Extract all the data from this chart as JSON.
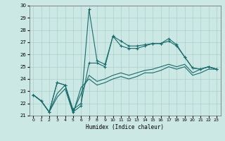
{
  "title": "",
  "xlabel": "Humidex (Indice chaleur)",
  "xlim": [
    -0.5,
    23.5
  ],
  "ylim": [
    21,
    30
  ],
  "yticks": [
    21,
    22,
    23,
    24,
    25,
    26,
    27,
    28,
    29,
    30
  ],
  "xticks": [
    0,
    1,
    2,
    3,
    4,
    5,
    6,
    7,
    8,
    9,
    10,
    11,
    12,
    13,
    14,
    15,
    16,
    17,
    18,
    19,
    20,
    21,
    22,
    23
  ],
  "bg_color": "#cce8e5",
  "grid_color": "#aad0cc",
  "line_color": "#1a6b6b",
  "line1_x": [
    0,
    1,
    2,
    3,
    4,
    5,
    6,
    7,
    8,
    9,
    10,
    11,
    12,
    13,
    14,
    15,
    16,
    17,
    18,
    19,
    20,
    21,
    22,
    23
  ],
  "line1_y": [
    22.7,
    22.2,
    21.3,
    23.7,
    23.5,
    21.3,
    21.8,
    29.7,
    25.5,
    25.2,
    27.5,
    27.1,
    26.7,
    26.7,
    26.8,
    26.9,
    26.9,
    27.3,
    26.8,
    25.8,
    24.9,
    24.8,
    25.0,
    24.8
  ],
  "line2_x": [
    0,
    1,
    2,
    3,
    4,
    5,
    6,
    7,
    8,
    9,
    10,
    11,
    12,
    13,
    14,
    15,
    16,
    17,
    18,
    19,
    20,
    21,
    22,
    23
  ],
  "line2_y": [
    22.7,
    22.2,
    21.3,
    23.7,
    23.5,
    21.5,
    22.0,
    25.3,
    25.3,
    25.0,
    27.5,
    26.7,
    26.5,
    26.5,
    26.7,
    26.9,
    26.9,
    27.1,
    26.7,
    25.8,
    24.9,
    24.8,
    25.0,
    24.8
  ],
  "line3_x": [
    0,
    1,
    2,
    3,
    4,
    5,
    6,
    7,
    8,
    9,
    10,
    11,
    12,
    13,
    14,
    15,
    16,
    17,
    18,
    19,
    20,
    21,
    22,
    23
  ],
  "line3_y": [
    22.7,
    22.2,
    21.3,
    22.8,
    23.5,
    21.3,
    22.8,
    24.3,
    23.8,
    24.0,
    24.3,
    24.5,
    24.3,
    24.5,
    24.7,
    24.8,
    25.0,
    25.2,
    25.0,
    25.2,
    24.5,
    24.8,
    25.0,
    24.8
  ],
  "line4_x": [
    0,
    1,
    2,
    3,
    4,
    5,
    6,
    7,
    8,
    9,
    10,
    11,
    12,
    13,
    14,
    15,
    16,
    17,
    18,
    19,
    20,
    21,
    22,
    23
  ],
  "line4_y": [
    22.7,
    22.2,
    21.3,
    22.5,
    23.2,
    21.2,
    23.3,
    24.0,
    23.5,
    23.7,
    24.0,
    24.2,
    24.0,
    24.2,
    24.5,
    24.5,
    24.7,
    25.0,
    24.8,
    25.0,
    24.3,
    24.5,
    24.8,
    24.8
  ]
}
